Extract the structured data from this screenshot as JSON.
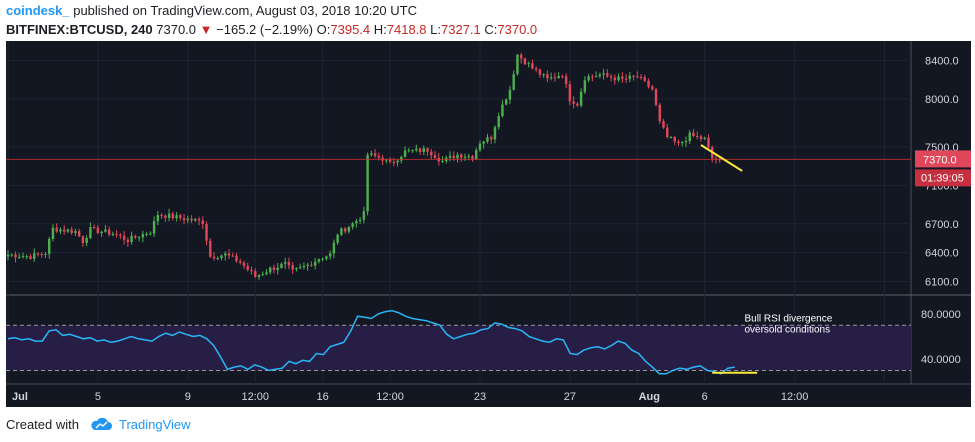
{
  "header": {
    "user": "coindesk_",
    "published": "published on TradingView.com, August 03, 2018 10:20 UTC",
    "symbol": "BITFINEX:BTCUSD, 240",
    "last": "7370.0",
    "arrow": "▼",
    "change": "−165.2 (−2.19%)",
    "o_label": "O:",
    "o_val": "7395.4",
    "h_label": "H:",
    "h_val": "7418.8",
    "l_label": "L:",
    "l_val": "7327.1",
    "c_label": "C:",
    "c_val": "7370.0"
  },
  "colors": {
    "up": "#4caf50",
    "down": "#e0475a",
    "bg": "#131722",
    "rsi": "#29b6f6",
    "rsi_band": "#2a1f4a",
    "trend": "#ffeb3b",
    "price_line": "#d32f2f"
  },
  "chart_data": [
    {
      "type": "candlestick",
      "title": "",
      "y_ticks": [
        6100,
        6400,
        6700,
        7100,
        7500,
        8000,
        8400
      ],
      "y_tick_labels": [
        "6100.0",
        "6400.0",
        "6700.0",
        "7100.0",
        "7500.0",
        "8000.0",
        "8400.0"
      ],
      "x_ticks": [
        0,
        24,
        48,
        66,
        84,
        102,
        126,
        150,
        168,
        186,
        210,
        234
      ],
      "x_tick_labels": [
        "Jul",
        "5",
        "9",
        "12:00",
        "16",
        "12:00",
        "23",
        "27",
        "Aug",
        "6",
        "12:00",
        ""
      ],
      "x_range": [
        0,
        240
      ],
      "last_price_label": "7370.0",
      "countdown_label": "01:39:05",
      "anchors": [
        [
          0,
          6380
        ],
        [
          6,
          6360
        ],
        [
          10,
          6400
        ],
        [
          12,
          6650
        ],
        [
          18,
          6620
        ],
        [
          20,
          6520
        ],
        [
          22,
          6640
        ],
        [
          28,
          6600
        ],
        [
          32,
          6530
        ],
        [
          38,
          6620
        ],
        [
          40,
          6800
        ],
        [
          46,
          6760
        ],
        [
          52,
          6720
        ],
        [
          54,
          6360
        ],
        [
          58,
          6380
        ],
        [
          62,
          6300
        ],
        [
          66,
          6150
        ],
        [
          70,
          6230
        ],
        [
          74,
          6280
        ],
        [
          76,
          6200
        ],
        [
          80,
          6270
        ],
        [
          83,
          6340
        ],
        [
          86,
          6380
        ],
        [
          88,
          6600
        ],
        [
          92,
          6700
        ],
        [
          95,
          6800
        ],
        [
          96,
          7420
        ],
        [
          100,
          7380
        ],
        [
          102,
          7320
        ],
        [
          106,
          7450
        ],
        [
          112,
          7470
        ],
        [
          116,
          7350
        ],
        [
          120,
          7420
        ],
        [
          124,
          7400
        ],
        [
          126,
          7550
        ],
        [
          129,
          7600
        ],
        [
          131,
          7850
        ],
        [
          134,
          8100
        ],
        [
          136,
          8460
        ],
        [
          140,
          8320
        ],
        [
          144,
          8200
        ],
        [
          148,
          8260
        ],
        [
          150,
          8000
        ],
        [
          152,
          7950
        ],
        [
          154,
          8220
        ],
        [
          158,
          8250
        ],
        [
          164,
          8200
        ],
        [
          168,
          8230
        ],
        [
          172,
          8100
        ],
        [
          174,
          7750
        ],
        [
          176,
          7600
        ],
        [
          179,
          7520
        ],
        [
          182,
          7620
        ],
        [
          186,
          7580
        ],
        [
          188,
          7380
        ],
        [
          190,
          7370
        ]
      ],
      "trendline": {
        "from": [
          185,
          7520
        ],
        "to": [
          196,
          7250
        ]
      },
      "last_price": 7370.0
    },
    {
      "type": "line",
      "title": "",
      "series": [
        {
          "values": [
            58,
            59,
            57,
            58,
            56,
            56,
            65,
            66,
            61,
            62,
            60,
            58,
            59,
            56,
            57,
            55,
            56,
            58,
            60,
            58,
            57,
            56,
            60,
            63,
            61,
            64,
            62,
            60,
            61,
            58,
            52,
            42,
            31,
            33,
            34,
            31,
            35,
            33,
            30,
            31,
            32,
            38,
            36,
            39,
            38,
            45,
            44,
            51,
            53,
            55,
            65,
            78,
            77,
            76,
            80,
            82,
            83,
            81,
            78,
            76,
            75,
            74,
            72,
            70,
            62,
            58,
            60,
            62,
            63,
            66,
            67,
            72,
            71,
            68,
            67,
            65,
            60,
            58,
            56,
            55,
            58,
            57,
            45,
            44,
            48,
            50,
            51,
            49,
            52,
            56,
            54,
            48,
            45,
            38,
            33,
            27,
            27,
            30,
            32,
            31,
            33,
            34,
            30,
            29,
            27,
            32,
            33
          ]
        }
      ],
      "y_ticks": [
        40,
        80
      ],
      "y_tick_labels": [
        "40.0000",
        "80.0000"
      ],
      "bands": [
        30,
        70
      ],
      "divergence": {
        "from": [
          188,
          28
        ],
        "to": [
          200,
          28
        ]
      },
      "annotation": [
        "Bull RSI divergence",
        "oversold conditions"
      ]
    }
  ],
  "footer": {
    "created": "Created with",
    "brand": "TradingView"
  }
}
